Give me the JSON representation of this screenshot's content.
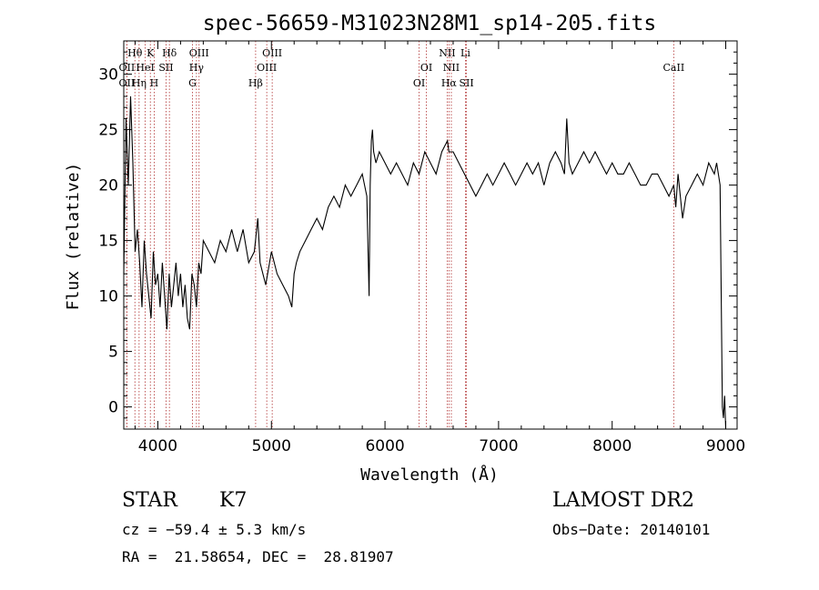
{
  "chart_data": {
    "type": "line",
    "title": "spec-56659-M31023N28M1_sp14-205.fits",
    "xlabel": "Wavelength (Å)",
    "ylabel": "Flux (relative)",
    "xlim": [
      3700,
      9100
    ],
    "ylim": [
      -2,
      33
    ],
    "x_ticks": [
      4000,
      5000,
      6000,
      7000,
      8000,
      9000
    ],
    "y_ticks": [
      0,
      5,
      10,
      15,
      20,
      25,
      30
    ],
    "grid": false,
    "line_color": "#000000",
    "marker_color": "#b03030",
    "spectral_lines": [
      {
        "name": "Hθ",
        "wavelength": 3798,
        "row": 1
      },
      {
        "name": "OII",
        "wavelength": 3727,
        "row": 2
      },
      {
        "name": "OII",
        "wavelength": 3727,
        "row": 3
      },
      {
        "name": "K",
        "wavelength": 3934,
        "row": 1
      },
      {
        "name": "HeI",
        "wavelength": 3889,
        "row": 2
      },
      {
        "name": "Hη",
        "wavelength": 3835,
        "row": 3
      },
      {
        "name": "H",
        "wavelength": 3968,
        "row": 3
      },
      {
        "name": "SII",
        "wavelength": 4072,
        "row": 2
      },
      {
        "name": "Hδ",
        "wavelength": 4102,
        "row": 1
      },
      {
        "name": "OIII",
        "wavelength": 4363,
        "row": 1
      },
      {
        "name": "Hγ",
        "wavelength": 4340,
        "row": 2
      },
      {
        "name": "G",
        "wavelength": 4305,
        "row": 3
      },
      {
        "name": "Hβ",
        "wavelength": 4861,
        "row": 3
      },
      {
        "name": "OIII",
        "wavelength": 5007,
        "row": 1
      },
      {
        "name": "OIII",
        "wavelength": 4959,
        "row": 2
      },
      {
        "name": "OI",
        "wavelength": 6364,
        "row": 2
      },
      {
        "name": "OI",
        "wavelength": 6300,
        "row": 3
      },
      {
        "name": "NII",
        "wavelength": 6548,
        "row": 1
      },
      {
        "name": "NII",
        "wavelength": 6584,
        "row": 2
      },
      {
        "name": "Hα",
        "wavelength": 6563,
        "row": 3
      },
      {
        "name": "Li",
        "wavelength": 6708,
        "row": 1
      },
      {
        "name": "SII",
        "wavelength": 6717,
        "row": 3
      },
      {
        "name": "CaII",
        "wavelength": 8542,
        "row": 2
      }
    ],
    "series": [
      {
        "x": [
          3700,
          3720,
          3740,
          3760,
          3780,
          3800,
          3820,
          3840,
          3860,
          3880,
          3900,
          3920,
          3940,
          3960,
          3980,
          4000,
          4020,
          4040,
          4060,
          4080,
          4100,
          4120,
          4140,
          4160,
          4180,
          4200,
          4220,
          4240,
          4260,
          4280,
          4300,
          4320,
          4340,
          4360,
          4380,
          4400,
          4450,
          4500,
          4550,
          4600,
          4650,
          4700,
          4750,
          4800,
          4850,
          4880,
          4900,
          4950,
          5000,
          5050,
          5100,
          5150,
          5180,
          5200,
          5220,
          5250,
          5300,
          5350,
          5400,
          5450,
          5500,
          5550,
          5600,
          5650,
          5700,
          5750,
          5800,
          5840,
          5860,
          5870,
          5880,
          5890,
          5900,
          5920,
          5950,
          6000,
          6050,
          6100,
          6150,
          6200,
          6250,
          6300,
          6350,
          6400,
          6450,
          6500,
          6550,
          6563,
          6600,
          6650,
          6700,
          6750,
          6800,
          6850,
          6900,
          6950,
          7000,
          7050,
          7100,
          7150,
          7200,
          7250,
          7300,
          7350,
          7400,
          7450,
          7500,
          7550,
          7580,
          7600,
          7620,
          7650,
          7700,
          7750,
          7800,
          7850,
          7900,
          7950,
          8000,
          8050,
          8100,
          8150,
          8200,
          8250,
          8300,
          8350,
          8400,
          8450,
          8500,
          8542,
          8560,
          8580,
          8600,
          8620,
          8650,
          8700,
          8750,
          8800,
          8850,
          8900,
          8920,
          8950,
          8970,
          8980,
          8990,
          9000
        ],
        "y": [
          12,
          26,
          20,
          28,
          22,
          14,
          16,
          13,
          9,
          15,
          12,
          10,
          8,
          14,
          11,
          12,
          9,
          13,
          10,
          7,
          12,
          9,
          11,
          13,
          10,
          12,
          9,
          11,
          8,
          7,
          12,
          11,
          9,
          13,
          12,
          15,
          14,
          13,
          15,
          14,
          16,
          14,
          16,
          13,
          14,
          17,
          13,
          11,
          14,
          12,
          11,
          10,
          9,
          12,
          13,
          14,
          15,
          16,
          17,
          16,
          18,
          19,
          18,
          20,
          19,
          20,
          21,
          19,
          10,
          20,
          24,
          25,
          23,
          22,
          23,
          22,
          21,
          22,
          21,
          20,
          22,
          21,
          23,
          22,
          21,
          23,
          24,
          23,
          23,
          22,
          21,
          20,
          19,
          20,
          21,
          20,
          21,
          22,
          21,
          20,
          21,
          22,
          21,
          22,
          20,
          22,
          23,
          22,
          21,
          26,
          22,
          21,
          22,
          23,
          22,
          23,
          22,
          21,
          22,
          21,
          21,
          22,
          21,
          20,
          20,
          21,
          21,
          20,
          19,
          20,
          18,
          21,
          19,
          17,
          19,
          20,
          21,
          20,
          22,
          21,
          22,
          20,
          0,
          -1,
          1,
          -2
        ]
      }
    ]
  },
  "info": {
    "class": "STAR",
    "subclass": "K7",
    "survey": "LAMOST DR2",
    "cz": "cz = −59.4 ± 5.3 km/s",
    "obs_date": "Obs−Date: 20140101",
    "coords": "RA =  21.58654, DEC =  28.81907"
  }
}
